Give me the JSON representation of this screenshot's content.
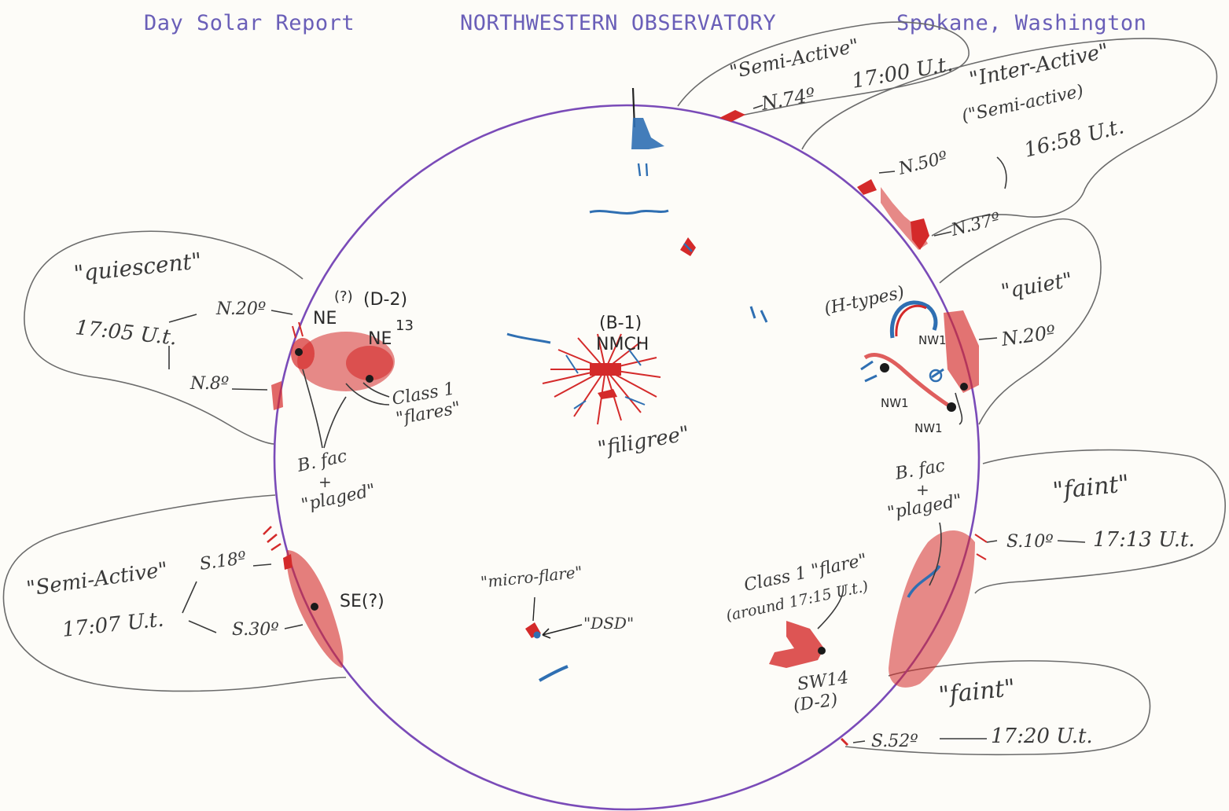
{
  "header": {
    "left": "Day Solar Report",
    "center": "NORTHWESTERN OBSERVATORY",
    "right": "Spokane, Washington"
  },
  "colors": {
    "disk": "#7a4bb8",
    "red": "#d42a2a",
    "blue": "#2f6fb2",
    "pencil": "#6b6b6b",
    "header": "#6a5fb8"
  },
  "regions": {
    "semi_active_top": {
      "label": "\"Semi-Active\"",
      "lat": "N.74º",
      "time": "17:00 U.t."
    },
    "inter_active": {
      "label": "\"Inter-Active\"",
      "sub": "(\"Semi-active)",
      "lat_a": "N.50º",
      "lat_b": "N.37º",
      "time": "16:58 U.t."
    },
    "quiescent": {
      "label": "\"quiescent\"",
      "time": "17:05 U.t.",
      "lat_a": "N.20º",
      "lat_b": "N.8º"
    },
    "quiet": {
      "label": "\"quiet\"",
      "lat": "N.20º"
    },
    "faint_right": {
      "label": "\"faint\"",
      "lat": "S.10º",
      "time": "17:13 U.t."
    },
    "semi_active_left": {
      "label": "\"Semi-Active\"",
      "time": "17:07 U.t.",
      "lat_a": "S.18º",
      "lat_b": "S.30º"
    },
    "faint_bottom": {
      "label": "\"faint\"",
      "lat": "S.52º",
      "time": "17:20 U.t."
    }
  },
  "disk_labels": {
    "ne_q": "NE",
    "ne_q_mark": "(?)",
    "d2_top": "(D-2)",
    "ne13": "NE",
    "ne13_num": "13",
    "class1_flares": "Class 1",
    "flares_word": "\"flares\"",
    "bfac_left": "B. fac",
    "plus_left": "+",
    "plaged_left": "\"plaged\"",
    "b1": "(B-1)",
    "nmch": "NMCH",
    "filigree": "\"filigree\"",
    "h_types": "(H-types)",
    "nw1_a": "NW1",
    "nw1_b": "NW1",
    "nw1_c": "NW1",
    "bfac_right": "B. fac",
    "plus_right": "+",
    "plaged_right": "\"plaged\"",
    "se_q": "SE(?)",
    "micro_flare": "\"micro-flare\"",
    "dsd": "\"DSD\"",
    "class1_flare": "Class 1 \"flare\"",
    "around": "(around 17:15 U.t.)",
    "sw14": "SW14",
    "d2_bottom": "(D-2)"
  }
}
